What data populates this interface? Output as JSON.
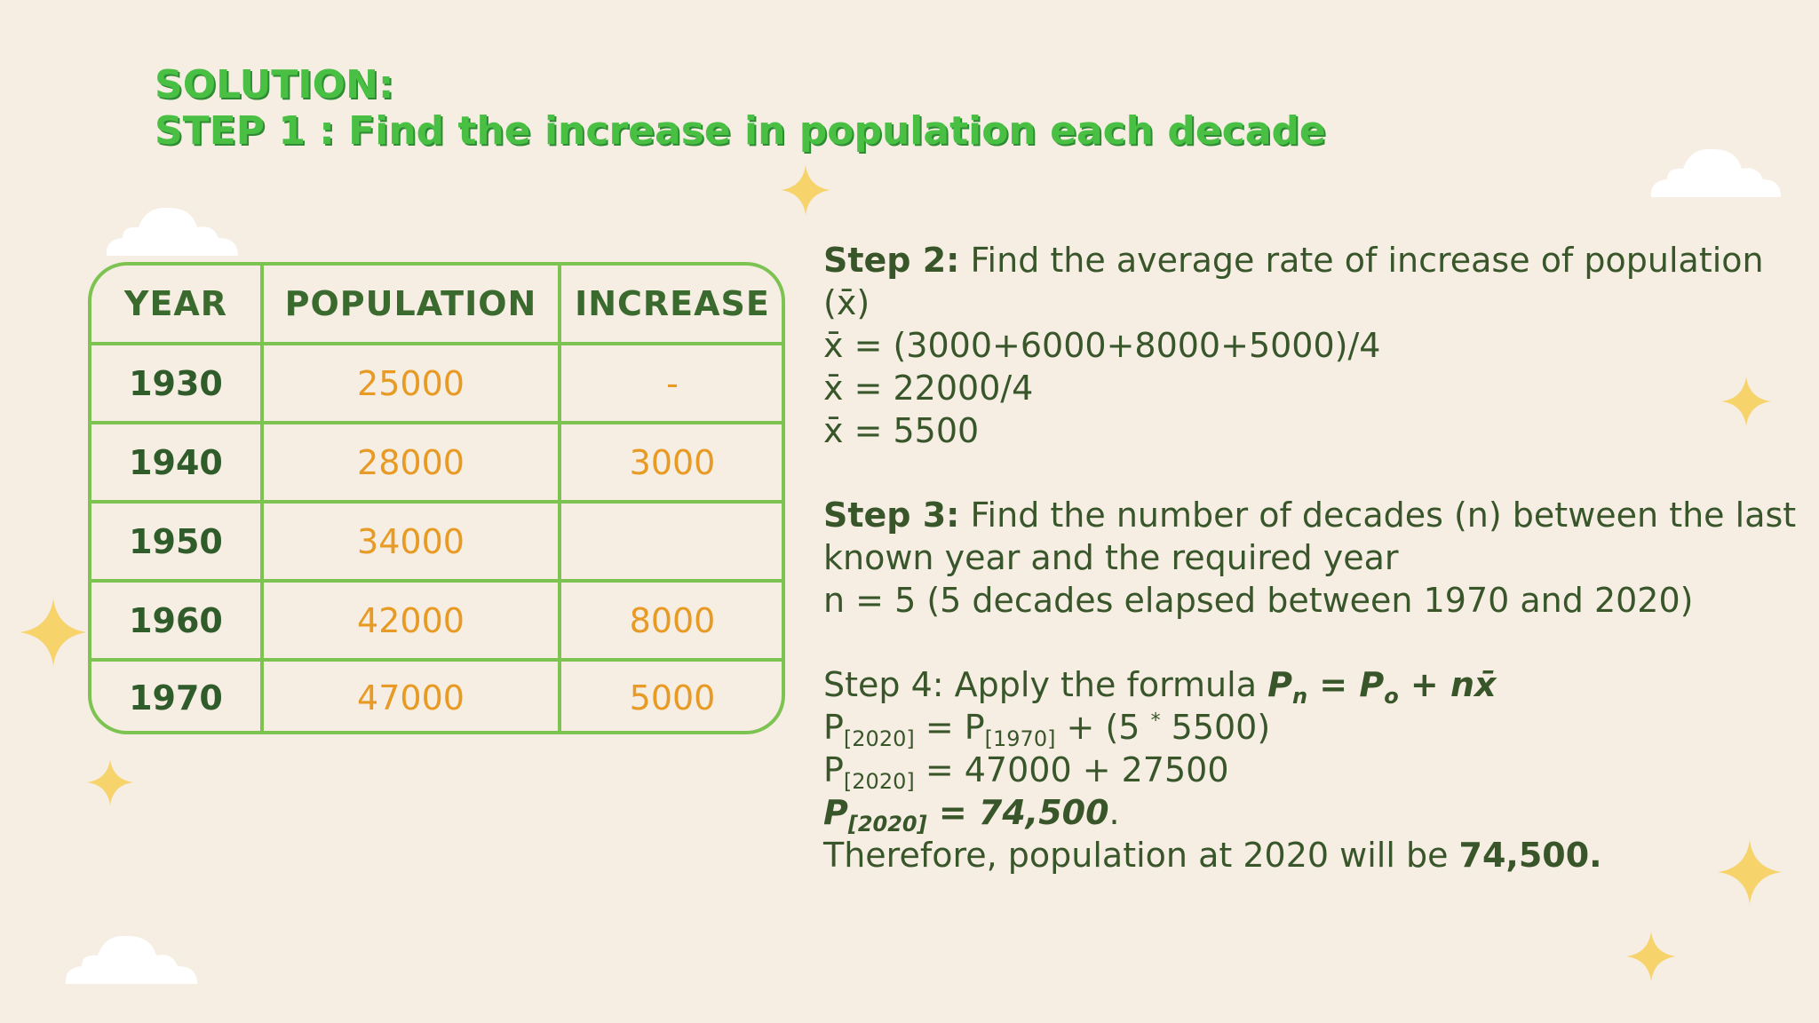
{
  "heading": {
    "line1": "SOLUTION:",
    "line2": "STEP 1 : Find the increase in population each decade"
  },
  "table": {
    "headers": [
      "YEAR",
      "POPULATION",
      "INCREASE"
    ],
    "rows": [
      {
        "year": "1930",
        "population": "25000",
        "increase": "-"
      },
      {
        "year": "1940",
        "population": "28000",
        "increase": "3000"
      },
      {
        "year": "1950",
        "population": "34000",
        "increase": ""
      },
      {
        "year": "1960",
        "population": "42000",
        "increase": "8000"
      },
      {
        "year": "1970",
        "population": "47000",
        "increase": "5000"
      }
    ]
  },
  "step2": {
    "label": "Step 2:",
    "text": " Find the average rate of increase of population",
    "line2": "(x̄)",
    "eq1": "x̄ = (3000+6000+8000+5000)/4",
    "eq2": "x̄ = 22000/4",
    "eq3": "x̄ = 5500"
  },
  "step3": {
    "label": "Step 3:",
    "text": " Find the number of decades (n) between the last",
    "line2": "known year and the required year",
    "line3": "n = 5 (5 decades elapsed between 1970 and 2020)"
  },
  "step4": {
    "text": "Step 4: Apply the formula ",
    "formula_p": "P",
    "formula_n": "n",
    "formula_eq": " = P",
    "formula_o": "o",
    "formula_rest": " + nx̄",
    "l2_p": "P",
    "l2_sub1": "[2020]",
    "l2_mid": " = P",
    "l2_sub2": "[1970]",
    "l2_rest": " + (5 ",
    "l2_sup": "*",
    "l2_end": " 5500)",
    "l3_p": "P",
    "l3_sub": "[2020]",
    "l3_rest": " = 47000 + 27500",
    "l4_p": "P",
    "l4_sub": "[2020]",
    "l4_rest": " = 74,500",
    "l4_dot": ".",
    "conclusion": "Therefore, population at 2020 will be ",
    "conclusion_value": "74,500."
  },
  "colors": {
    "background": "#f6ede3",
    "title_green": "#49c043",
    "table_border": "#7dc352",
    "value_orange": "#e79a24",
    "text_dark_green": "#38562a",
    "star_yellow": "#f6d36b",
    "cloud_white": "#ffffff"
  }
}
